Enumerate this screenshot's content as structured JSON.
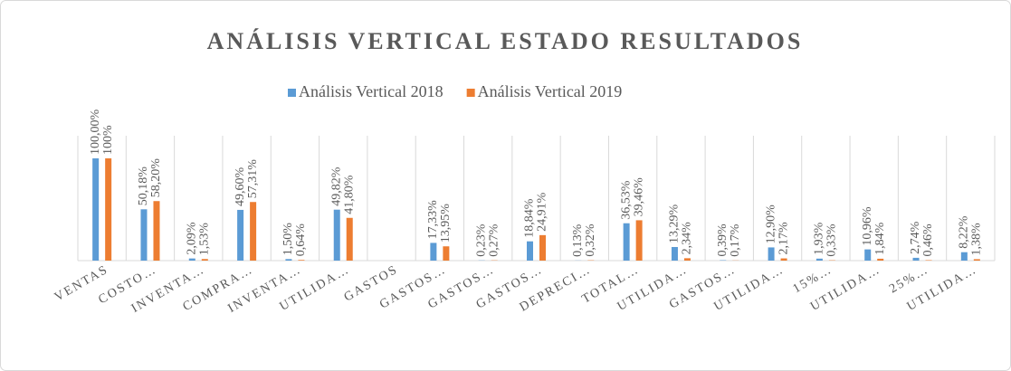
{
  "chart_data": {
    "type": "bar",
    "title": "ANÁLISIS VERTICAL ESTADO RESULTADOS",
    "categories": [
      "VENTAS",
      "COSTO…",
      "INVENTA…",
      "COMPRA…",
      "INVENTA…",
      "UTILIDA…",
      "GASTOS",
      "GASTOS…",
      "GASTOS…",
      "GASTOS…",
      "DEPRECI…",
      "TOTAL…",
      "UTILIDA…",
      "GASTOS…",
      "UTILIDA…",
      "15%…",
      "UTILIDA…",
      "25%…",
      "UTILIDA…"
    ],
    "series": [
      {
        "name": "Análisis Vertical 2018",
        "color": "#5b9bd5",
        "values": [
          100,
          50.18,
          2.09,
          49.6,
          1.5,
          49.82,
          null,
          17.33,
          0.23,
          18.84,
          0.13,
          36.53,
          13.29,
          0.39,
          12.9,
          1.93,
          10.96,
          2.74,
          8.22
        ],
        "value_labels": [
          "100,00%",
          "50,18%",
          "2,09%",
          "49,60%",
          "1,50%",
          "49,82%",
          null,
          "17,33%",
          "0,23%",
          "18,84%",
          "0,13%",
          "36,53%",
          "13,29%",
          "0,39%",
          "12,90%",
          "1,93%",
          "10,96%",
          "2,74%",
          "8,22%"
        ]
      },
      {
        "name": "Análisis Vertical 2019",
        "color": "#ed7d31",
        "values": [
          100,
          58.2,
          1.53,
          57.31,
          0.64,
          41.8,
          null,
          13.95,
          0.27,
          24.91,
          0.32,
          39.46,
          2.34,
          0.17,
          2.17,
          0.33,
          1.84,
          0.46,
          1.38
        ],
        "value_labels": [
          "100%",
          "58,20%",
          "1,53%",
          "57,31%",
          "0,64%",
          "41,80%",
          null,
          "13,95%",
          "0,27%",
          "24,91%",
          "0,32%",
          "39,46%",
          "2,34%",
          "0,17%",
          "2,17%",
          "0,33%",
          "1,84%",
          "0,46%",
          "1,38%"
        ]
      }
    ],
    "legend": "top"
  }
}
